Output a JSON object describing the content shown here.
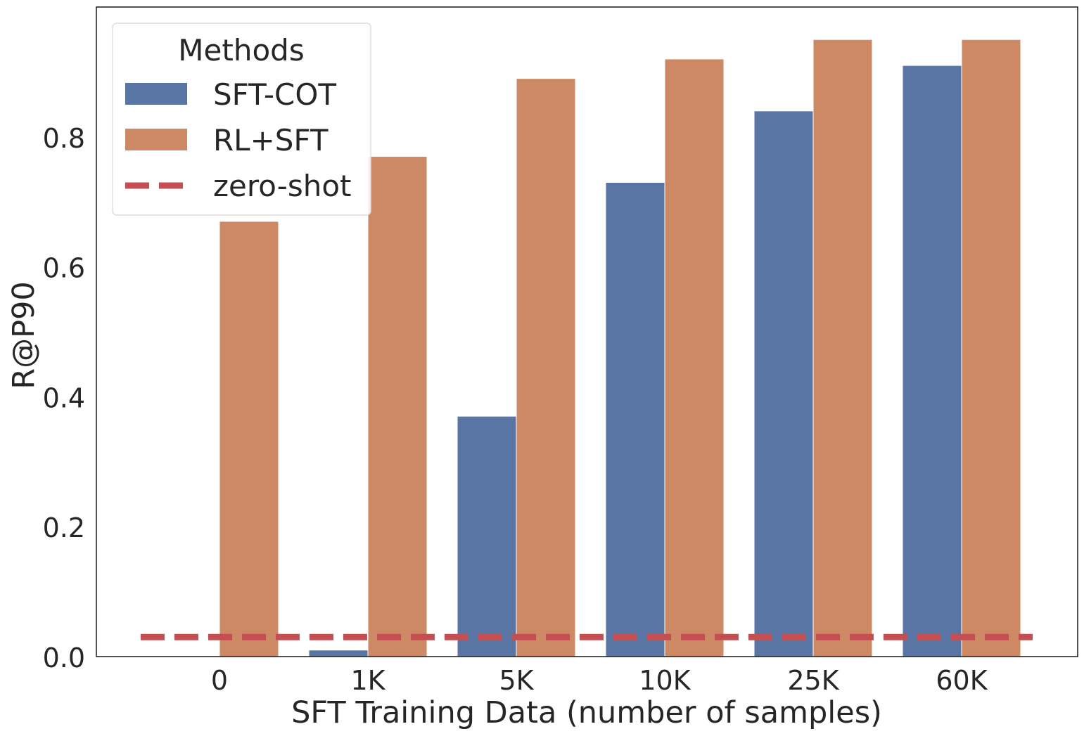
{
  "chart_data": {
    "type": "bar",
    "title": "",
    "xlabel": "SFT Training Data (number of samples)",
    "ylabel": "R@P90",
    "categories": [
      "0",
      "1K",
      "5K",
      "10K",
      "25K",
      "60K"
    ],
    "ylim": [
      0,
      1.0
    ],
    "yticks": [
      "0.0",
      "0.2",
      "0.4",
      "0.6",
      "0.8"
    ],
    "grid": false,
    "series": [
      {
        "name": "SFT-COT",
        "color": "#5975a4",
        "values": [
          0.0,
          0.01,
          0.37,
          0.73,
          0.84,
          0.91
        ]
      },
      {
        "name": "RL+SFT",
        "color": "#cc8963",
        "values": [
          0.67,
          0.77,
          0.89,
          0.92,
          0.95,
          0.95
        ]
      }
    ],
    "reference_line": {
      "name": "zero-shot",
      "value": 0.03,
      "color": "#c44e52",
      "style": "dashed"
    },
    "legend": {
      "title": "Methods",
      "placement": "top-left"
    }
  }
}
